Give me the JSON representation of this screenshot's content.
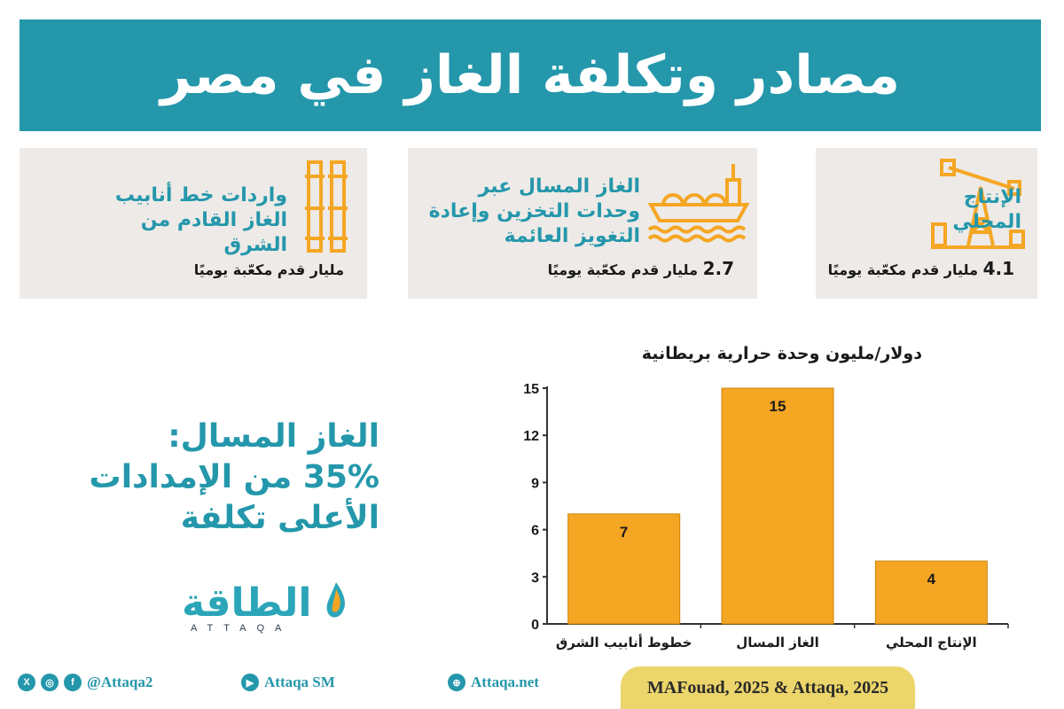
{
  "title": "مصادر وتكلفة الغاز في مصر",
  "cards": [
    {
      "text": "الإنتاج المحلي",
      "value_num": "4.1",
      "value_unit": "مليار قدم مكعّبة يوميًا",
      "icon": "oil-pump-icon"
    },
    {
      "text": "الغاز المسال عبر وحدات التخزين وإعادة التغويز العائمة",
      "value_num": "2.7",
      "value_unit": "مليار قدم مكعّبة يوميًا",
      "icon": "lng-ship-icon"
    },
    {
      "text": "واردات خط أنابيب الغاز القادم من الشرق",
      "value_num": "",
      "value_unit": "مليار قدم مكعّبة يوميًا",
      "icon": "pipeline-icon"
    }
  ],
  "note": {
    "line1": "الغاز المسال:",
    "line2": "35% من الإمدادات",
    "line3": "الأعلى تكلفة"
  },
  "logo": {
    "arabic": "الطاقة",
    "english": "ATTAQA"
  },
  "footer": {
    "social": "@Attaqa2",
    "youtube": "Attaqa SM",
    "web": "Attaqa.net",
    "source": "MAFouad, 2025 & Attaqa, 2025"
  },
  "colors": {
    "teal": "#2497ab",
    "bar": "#f5a623",
    "card_bg": "#edeae7",
    "source_bg": "#ecd56a"
  },
  "chart_data": {
    "type": "bar",
    "title": "دولار/مليون وحدة حرارية بريطانية",
    "categories": [
      "الإنتاج المحلي",
      "الغاز المسال",
      "خطوط أنابيب الشرق"
    ],
    "values": [
      4,
      15,
      7
    ],
    "yticks": [
      0,
      3,
      6,
      9,
      12,
      15
    ],
    "ylim": [
      0,
      15
    ],
    "grid": false
  }
}
